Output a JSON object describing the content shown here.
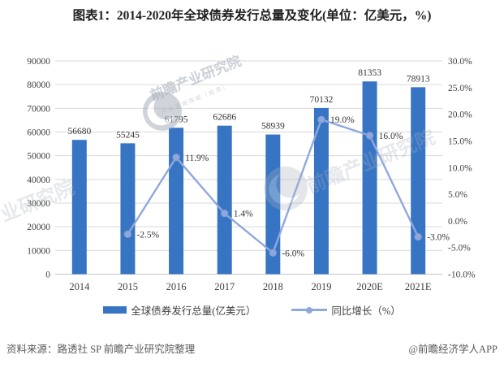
{
  "title": "图表1：2014-2020年全球债券发行总量及变化(单位：亿美元，%)",
  "source_note": "资料来源：路透社 SP 前瞻产业研究院整理",
  "credit": "@前瞻经济学人APP",
  "watermark": {
    "brand": "前瞻产业研究院",
    "sub": "产业咨询领域（投资）",
    "color": "#A9B0BC"
  },
  "legend": [
    {
      "label": "全球债券发行总量(亿美元）",
      "type": "bar",
      "color": "#3775C4"
    },
    {
      "label": "同比增长（%）",
      "type": "line",
      "color": "#8FA8DC"
    }
  ],
  "colors": {
    "bar": "#3775C4",
    "line": "#8FA8DC",
    "marker_stroke": "#7E99D0",
    "grid": "#D9D9D9",
    "axis_line": "#C6C6C6",
    "tick_text": "#404040"
  },
  "chart_data": {
    "type": "bar",
    "subtype": "bar+line combo, dual axis",
    "categories": [
      "2014",
      "2015",
      "2016",
      "2017",
      "2018",
      "2019",
      "2020E",
      "2021E"
    ],
    "series": [
      {
        "name": "全球债券发行总量(亿美元）",
        "type": "bar",
        "axis": "left",
        "values": [
          56680,
          55245,
          61795,
          62686,
          58939,
          70132,
          81353,
          78913
        ],
        "labels": [
          "56680",
          "55245",
          "61795",
          "62686",
          "58939",
          "70132",
          "81353",
          "78913"
        ]
      },
      {
        "name": "同比增长（%）",
        "type": "line",
        "axis": "right",
        "values": [
          null,
          -2.5,
          11.9,
          1.4,
          -6.0,
          19.0,
          16.0,
          -3.0
        ],
        "labels": [
          null,
          "-2.5%",
          "11.9%",
          "1.4%",
          "-6.0%",
          "19.0%",
          "16.0%",
          "-3.0%"
        ]
      }
    ],
    "left_axis": {
      "min": 0,
      "max": 90000,
      "step": 10000,
      "ticks": [
        "0",
        "10000",
        "20000",
        "30000",
        "40000",
        "50000",
        "60000",
        "70000",
        "80000",
        "90000"
      ]
    },
    "right_axis": {
      "min": -10,
      "max": 30,
      "step": 5,
      "ticks": [
        "-10.0%",
        "-5.0%",
        "0.0%",
        "5.0%",
        "10.0%",
        "15.0%",
        "20.0%",
        "25.0%",
        "30.0%"
      ]
    },
    "grid": true,
    "legend_position": "bottom"
  }
}
